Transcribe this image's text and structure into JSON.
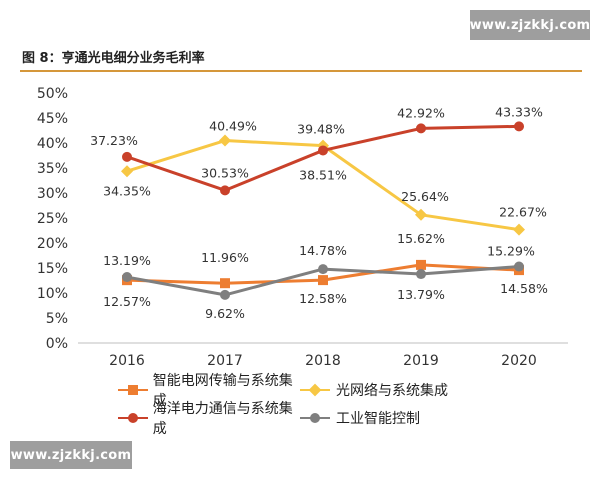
{
  "watermark": {
    "top": "www.zjzkkj.com",
    "bottom": "www.zjzkkj.com"
  },
  "figure": {
    "title": "图 8：亨通光电细分业务毛利率"
  },
  "chart_data": {
    "type": "line",
    "x": [
      "2016",
      "2017",
      "2018",
      "2019",
      "2020"
    ],
    "ylim": [
      0,
      50
    ],
    "yticks": [
      "0%",
      "5%",
      "10%",
      "15%",
      "20%",
      "25%",
      "30%",
      "35%",
      "40%",
      "45%",
      "50%"
    ],
    "grid": false,
    "legend_position": "bottom",
    "series": [
      {
        "name": "智能电网传输与系统集成",
        "color": "#ed7d31",
        "marker": "square",
        "values": [
          12.57,
          11.96,
          12.58,
          15.62,
          14.58
        ],
        "labels": [
          "12.57%",
          "11.96%",
          "12.58%",
          "15.62%",
          "14.58%"
        ]
      },
      {
        "name": "光网络与系统集成",
        "color": "#f7c744",
        "marker": "diamond",
        "values": [
          34.35,
          40.49,
          39.48,
          25.64,
          22.67
        ],
        "labels": [
          "34.35%",
          "40.49%",
          "39.48%",
          "25.64%",
          "22.67%"
        ]
      },
      {
        "name": "海洋电力通信与系统集成",
        "color": "#c9412a",
        "marker": "circle",
        "values": [
          37.23,
          30.53,
          38.51,
          42.92,
          43.33
        ],
        "labels": [
          "37.23%",
          "30.53%",
          "38.51%",
          "42.92%",
          "43.33%"
        ]
      },
      {
        "name": "工业智能控制",
        "color": "#7f7f7f",
        "marker": "circle",
        "values": [
          13.19,
          9.62,
          14.78,
          13.79,
          15.29
        ],
        "labels": [
          "13.19%",
          "9.62%",
          "14.78%",
          "13.79%",
          "15.29%"
        ]
      }
    ]
  }
}
